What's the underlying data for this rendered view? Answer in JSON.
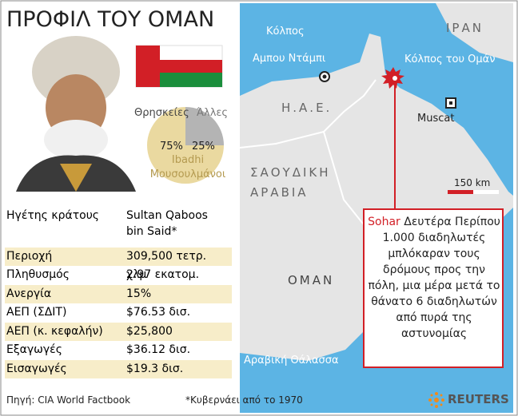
{
  "title": "ΠΡΟΦΙΛ ΤΟΥ ΟΜΑΝ",
  "religion": {
    "title": "Θρησκείες",
    "slices": [
      {
        "name": "Ibadhi Μουσουλμάνοι",
        "value": 75,
        "label": "75%",
        "color": "#ead9a0"
      },
      {
        "name": "Άλλες",
        "value": 25,
        "label": "25%",
        "color": "#b4b4b4"
      }
    ]
  },
  "table": {
    "rows": [
      [
        "Ηγέτης κράτους",
        "Sultan Qaboos bin Said*"
      ],
      [
        "Περιοχή",
        "309,500 τετρ. χλμ"
      ],
      [
        "Πληθυσμός",
        "2.97 εκατομ."
      ],
      [
        "Ανεργία",
        "15%"
      ],
      [
        "ΑΕΠ (ΣΔΙΤ)",
        "$76.53 δισ."
      ],
      [
        "ΑΕΠ (κ. κεφαλήν)",
        "$25,800"
      ],
      [
        "Εξαγωγές",
        "$36.12 δισ."
      ],
      [
        "Εισαγωγές",
        "$19.3 δισ."
      ]
    ]
  },
  "map": {
    "labels": [
      "Κόλπος",
      "Αμπου Ντάμπι",
      "Η.Α.Ε.",
      "ΙΡΑΝ",
      "Κόλπος του Ομάν",
      "Muscat",
      "ΣΑΟΥΔΙΚΗ",
      "ΑΡΑΒΙΑ",
      "ΟΜΑΝ",
      "Αραβική Θάλασσα"
    ],
    "scale": "150 km",
    "callout": {
      "place": "Sohar",
      "text": "Δευτέρα Περίπου 1.000 διαδηλωτές μπλόκαραν τους δρόμους προς την πόλη, μια μέρα μετά το θάνατο 6 διαδηλωτών από πυρά της αστυνομίας"
    }
  },
  "footer": {
    "source": "Πηγή: CIA World Factbook",
    "note": "*Κυβερνάει από το 1970",
    "brand": "REUTERS"
  }
}
